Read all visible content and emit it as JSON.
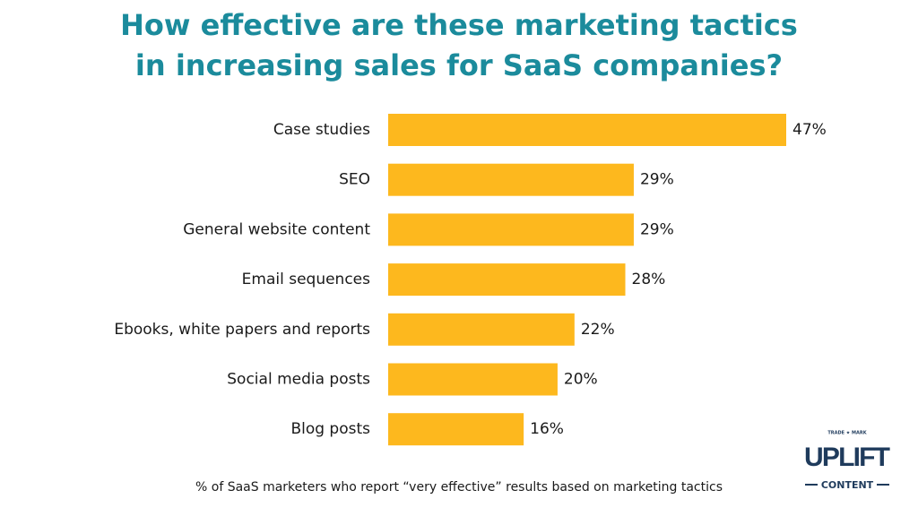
{
  "chart_data": {
    "type": "bar",
    "orientation": "horizontal",
    "title": "How effective are these marketing tactics in increasing sales for SaaS companies?",
    "categories": [
      "Case studies",
      "SEO",
      "General website content",
      "Email sequences",
      "Ebooks, white papers and reports",
      "Social media posts",
      "Blog posts"
    ],
    "values": [
      47,
      29,
      29,
      28,
      22,
      20,
      16
    ],
    "value_labels": [
      "47%",
      "29%",
      "29%",
      "28%",
      "22%",
      "20%",
      "16%"
    ],
    "color": "#fdb81e",
    "footnote": "% of SaaS marketers who report “very effective” results based on marketing tactics",
    "logo": {
      "small": "TRADE ★ MARK",
      "name": "UPLIFT",
      "sub": "CONTENT"
    }
  }
}
